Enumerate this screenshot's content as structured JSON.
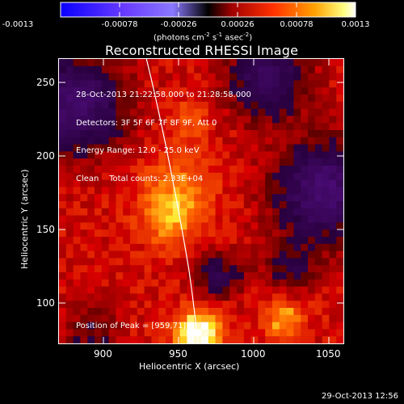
{
  "colorbar": {
    "ticks": [
      "-0.0013",
      "-0.00078",
      "-0.00026",
      "0.00026",
      "0.00078",
      "0.0013"
    ],
    "units_label": "(photons cm",
    "units_exp1": "-2",
    "units_mid": " s",
    "units_exp2": "-1",
    "units_mid2": " asec",
    "units_exp3": "-2",
    "units_end": ")"
  },
  "plot": {
    "title": "Reconstructed RHESSI Image",
    "xlabel": "Heliocentric X (arcsec)",
    "ylabel": "Heliocentric Y (arcsec)",
    "xticks": [
      "900",
      "950",
      "1000",
      "1050"
    ],
    "yticks": [
      "250",
      "200",
      "150",
      "100"
    ],
    "info_lines": [
      "28-Oct-2013 21:22:58.000 to 21:28:58.000",
      "Detectors: 3F 5F 6F 7F 8F 9F, Att 0",
      "Energy Range: 12.0 - 25.0 keV",
      "Clean    Total counts: 2.33E+04"
    ],
    "peak_text": "Position of Peak = [959,71]"
  },
  "footer": {
    "timestamp": "29-Oct-2013 12:56"
  },
  "chart_data": {
    "type": "heatmap",
    "title": "Reconstructed RHESSI Image",
    "xlabel": "Heliocentric X (arcsec)",
    "ylabel": "Heliocentric Y (arcsec)",
    "xlim": [
      870,
      1060
    ],
    "ylim": [
      70,
      265
    ],
    "colorbar_range": [
      -0.0013,
      0.0013
    ],
    "colorbar_units": "photons cm^-2 s^-1 asec^-2",
    "peak_position": [
      959,
      71
    ],
    "colors": {
      "negative": "#2a00ff",
      "zero": "#000000",
      "positive_low": "#c00000",
      "positive_mid": "#ff4400",
      "positive_high": "#ffd000",
      "max": "#ffffff",
      "limb_line": "#ffffff"
    }
  }
}
